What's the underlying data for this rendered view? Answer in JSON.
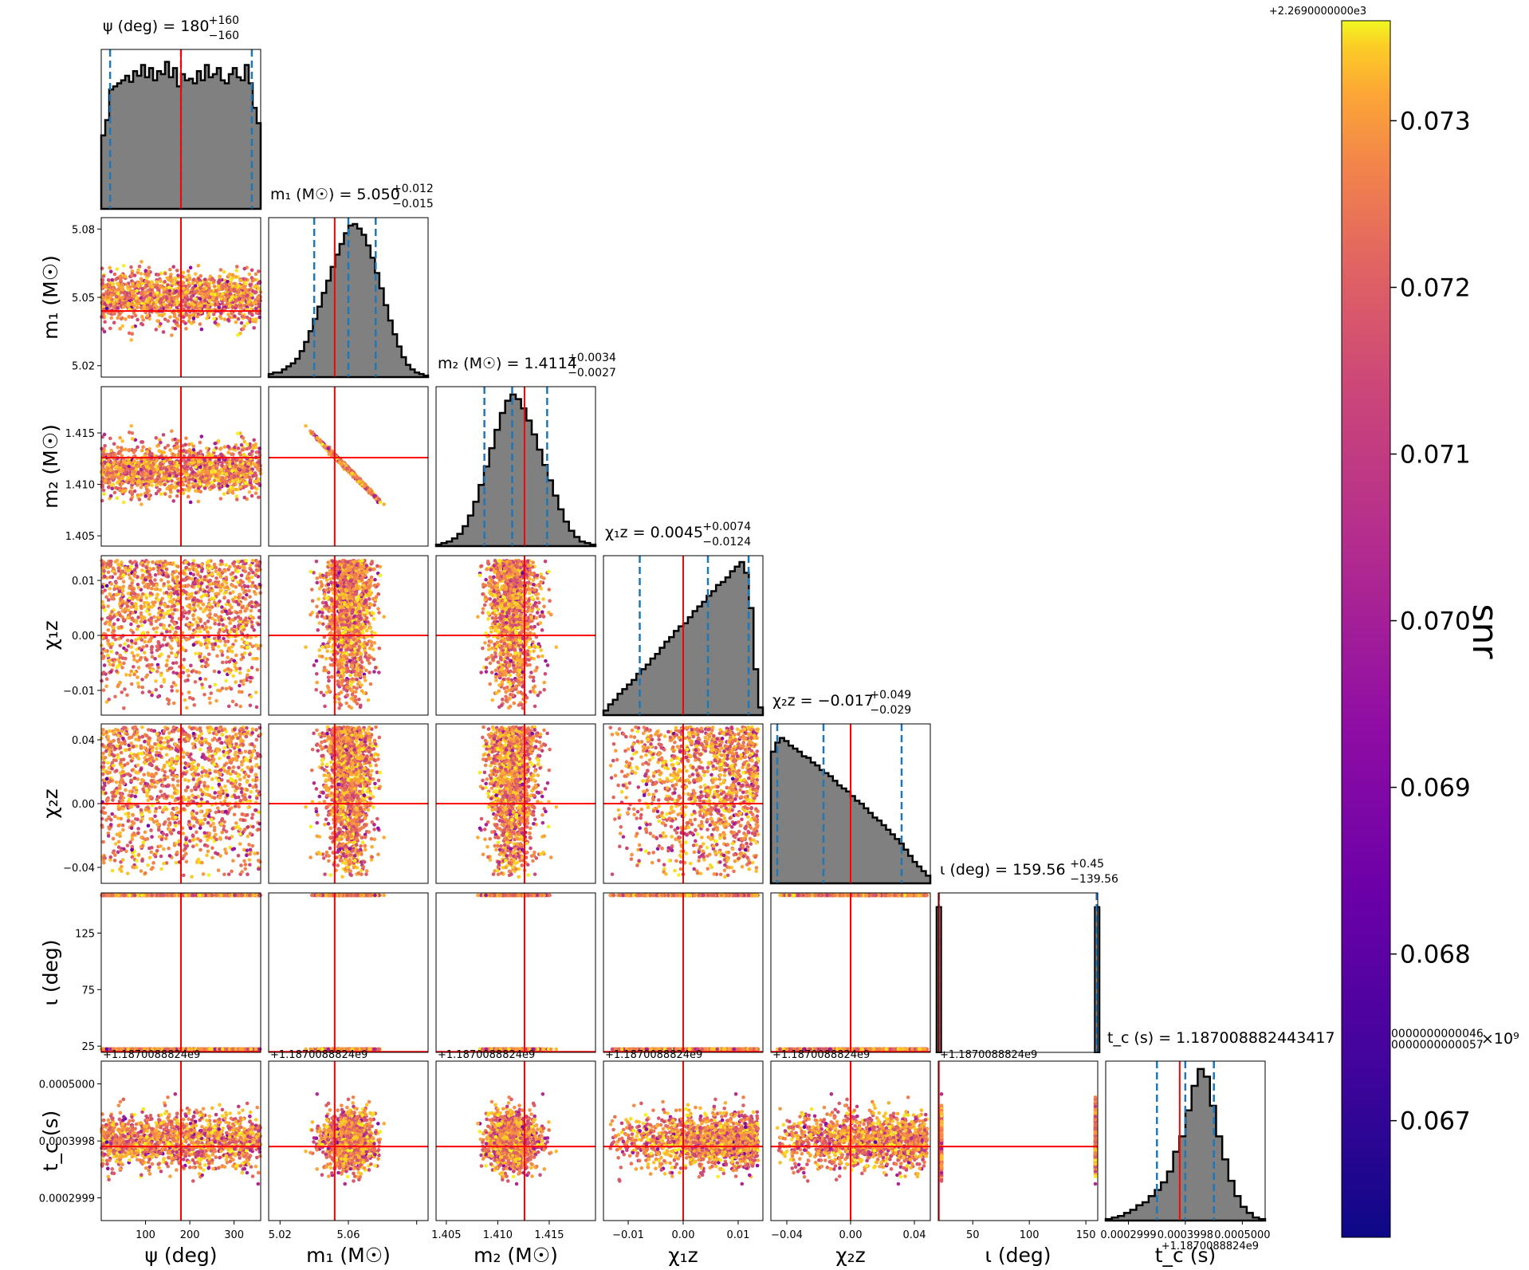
{
  "chart_data": {
    "type": "corner",
    "colormap": "plasma",
    "colors": {
      "histogram_fill": "#808080",
      "histogram_edge": "#000000",
      "quantile_lines": "#1f77b4",
      "truth_lines": "#ff0000"
    },
    "parameters": [
      {
        "key": "psi",
        "axis_label": "ψ (deg)",
        "title": "ψ (deg) = 180",
        "title_sup": "+160",
        "title_sub": "−160",
        "range": [
          0,
          360
        ],
        "ticks": [
          100,
          200,
          300
        ],
        "tick_labels": [
          "100",
          "200",
          "300"
        ],
        "median": 180,
        "quantiles": [
          20,
          180,
          340
        ],
        "truth": 180,
        "hist": [
          0.48,
          0.58,
          0.78,
          0.8,
          0.82,
          0.84,
          0.87,
          0.83,
          0.9,
          0.87,
          0.94,
          0.86,
          0.92,
          0.84,
          0.9,
          0.88,
          0.96,
          0.86,
          0.92,
          0.8,
          0.88,
          0.84,
          0.85,
          0.82,
          0.9,
          0.84,
          0.94,
          0.86,
          0.88,
          0.92,
          0.84,
          0.82,
          0.88,
          0.92,
          0.86,
          0.84,
          0.94,
          0.82,
          0.66,
          0.56
        ]
      },
      {
        "key": "m1",
        "axis_label": "m₁ (M☉)",
        "title": "m₁ (M☉) = 5.050",
        "title_sup": "+0.012",
        "title_sub": "−0.015",
        "range": [
          5.015,
          5.085
        ],
        "ticks": [
          5.02,
          5.05,
          5.08
        ],
        "tick_labels": [
          "5.02",
          "5.05",
          "5.08"
        ],
        "bottom_tick_labels": [
          "5.02",
          "5.06"
        ],
        "median": 5.05,
        "quantiles": [
          5.035,
          5.05,
          5.062
        ],
        "truth": 5.044,
        "hist": [
          0.02,
          0.03,
          0.03,
          0.05,
          0.07,
          0.09,
          0.12,
          0.17,
          0.23,
          0.3,
          0.38,
          0.46,
          0.55,
          0.63,
          0.72,
          0.8,
          0.87,
          0.94,
          0.99,
          1.0,
          0.97,
          0.93,
          0.86,
          0.78,
          0.68,
          0.58,
          0.47,
          0.37,
          0.28,
          0.2,
          0.13,
          0.08,
          0.05,
          0.03,
          0.02,
          0.01
        ]
      },
      {
        "key": "m2",
        "axis_label": "m₂ (M☉)",
        "title": "m₂ (M☉) = 1.4114",
        "title_sup": "+0.0034",
        "title_sub": "−0.0027",
        "range": [
          1.404,
          1.4195
        ],
        "ticks": [
          1.405,
          1.41,
          1.415
        ],
        "tick_labels": [
          "1.405",
          "1.410",
          "1.415"
        ],
        "median": 1.4114,
        "quantiles": [
          1.4087,
          1.4114,
          1.4148
        ],
        "truth": 1.4126,
        "hist": [
          0.01,
          0.02,
          0.03,
          0.05,
          0.08,
          0.13,
          0.2,
          0.29,
          0.4,
          0.52,
          0.64,
          0.76,
          0.87,
          0.95,
          0.99,
          0.96,
          0.9,
          0.82,
          0.73,
          0.63,
          0.53,
          0.43,
          0.33,
          0.24,
          0.16,
          0.1,
          0.06,
          0.03,
          0.02,
          0.01
        ]
      },
      {
        "key": "chi1z",
        "axis_label": "χ₁z",
        "title": "χ₁z = 0.0045",
        "title_sup": "+0.0074",
        "title_sub": "−0.0124",
        "range": [
          -0.0145,
          0.0145
        ],
        "ticks": [
          -0.01,
          0.0,
          0.01
        ],
        "tick_labels": [
          "−0.01",
          "0.00",
          "0.01"
        ],
        "bottom_tick_labels": [
          "−0.01",
          "0.00",
          "0.01"
        ],
        "median": 0.0045,
        "quantiles": [
          -0.0079,
          0.0045,
          0.0119
        ],
        "truth": 0.0,
        "hist": [
          0.03,
          0.07,
          0.1,
          0.14,
          0.17,
          0.2,
          0.23,
          0.27,
          0.3,
          0.33,
          0.37,
          0.4,
          0.44,
          0.48,
          0.51,
          0.55,
          0.58,
          0.6,
          0.64,
          0.68,
          0.71,
          0.74,
          0.78,
          0.81,
          0.85,
          0.87,
          0.9,
          0.94,
          0.97,
          1.0,
          0.93,
          0.7,
          0.3,
          0.05
        ]
      },
      {
        "key": "chi2z",
        "axis_label": "χ₂z",
        "title": "χ₂z = −0.017",
        "title_sup": "+0.049",
        "title_sub": "−0.029",
        "range": [
          -0.05,
          0.05
        ],
        "ticks": [
          -0.04,
          0.0,
          0.04
        ],
        "tick_labels": [
          "−0.04",
          "0.00",
          "0.04"
        ],
        "bottom_tick_labels": [
          "−0.04",
          "0.00",
          "0.04"
        ],
        "median": -0.017,
        "quantiles": [
          -0.046,
          -0.017,
          0.032
        ],
        "truth": 0.0,
        "hist": [
          0.86,
          0.92,
          0.95,
          0.93,
          0.9,
          0.88,
          0.86,
          0.83,
          0.82,
          0.79,
          0.77,
          0.74,
          0.72,
          0.7,
          0.67,
          0.64,
          0.62,
          0.6,
          0.57,
          0.54,
          0.52,
          0.49,
          0.46,
          0.43,
          0.41,
          0.38,
          0.35,
          0.32,
          0.29,
          0.26,
          0.22,
          0.18,
          0.14,
          0.11,
          0.08,
          0.05
        ]
      },
      {
        "key": "iota",
        "axis_label": "ι (deg)",
        "title": "ι (deg) = 159.56",
        "title_sup": "+0.45",
        "title_sub": "−139.56",
        "range": [
          19.5,
          160.5
        ],
        "ticks": [
          25,
          75,
          125
        ],
        "tick_labels": [
          "25",
          "75",
          "125"
        ],
        "bottom_ticks": [
          50,
          100,
          150
        ],
        "bottom_tick_labels": [
          "50",
          "100",
          "150"
        ],
        "median": 159.56,
        "quantiles": [
          20.0,
          159.56,
          160.0
        ],
        "truth": 20.0,
        "hist_spikes": [
          {
            "value": 20.0,
            "height": 0.95
          },
          {
            "value": 160.0,
            "height": 0.95
          }
        ]
      },
      {
        "key": "tc",
        "axis_label": "t_c (s)",
        "title": "t_c (s) = 1.187008882443417",
        "title_overflow_sup": "0000000000046",
        "title_overflow_sub": "0000000000057",
        "title_exponent": "×10⁹",
        "range": [
          0.00026,
          0.00054
        ],
        "ticks": [
          0.0002999,
          0.0003998,
          0.0005
        ],
        "tick_labels": [
          "0.0002999",
          "0.0003998",
          "0.0005000"
        ],
        "offset_text": "+1.1870088824e9",
        "median": 0.0003998,
        "quantiles": [
          0.00035,
          0.0003998,
          0.00045
        ],
        "truth": 0.00039,
        "hist": [
          0.01,
          0.02,
          0.03,
          0.05,
          0.07,
          0.1,
          0.12,
          0.16,
          0.2,
          0.25,
          0.32,
          0.45,
          0.55,
          0.72,
          0.88,
          0.99,
          0.94,
          0.75,
          0.55,
          0.4,
          0.26,
          0.16,
          0.09,
          0.05,
          0.02,
          0.01
        ]
      }
    ],
    "colorbar": {
      "label": "snr",
      "offset_text": "+2.2690000000e3",
      "range": [
        0.0663,
        0.0736
      ],
      "ticks": [
        0.067,
        0.068,
        0.069,
        0.07,
        0.071,
        0.072,
        0.073
      ],
      "tick_labels": [
        "0.067",
        "0.068",
        "0.069",
        "0.070",
        "0.071",
        "0.072",
        "0.073"
      ]
    }
  }
}
